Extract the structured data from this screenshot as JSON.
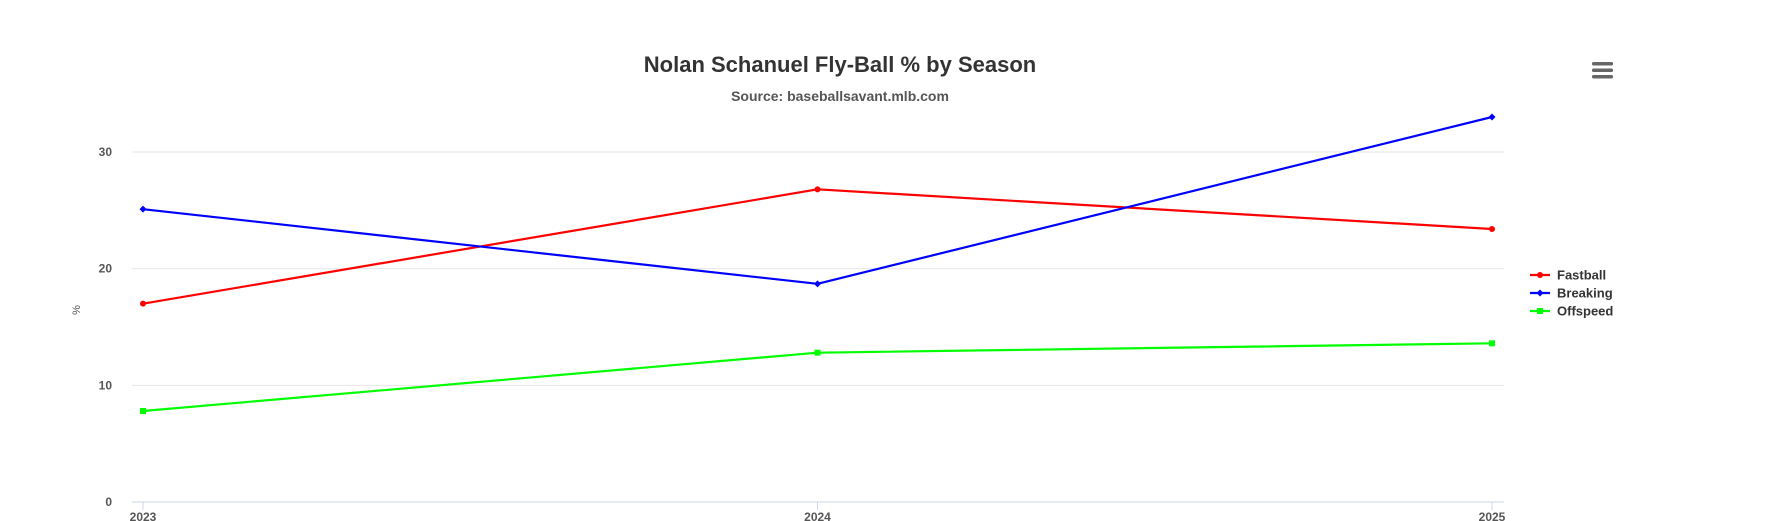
{
  "chart_data": {
    "type": "line",
    "title": "Nolan Schanuel Fly-Ball % by Season",
    "subtitle": "Source: baseballsavant.mlb.com",
    "xlabel": "",
    "ylabel": "%",
    "categories": [
      "2023",
      "2024",
      "2025"
    ],
    "ylim": [
      0,
      33
    ],
    "yticks": [
      0,
      10,
      20,
      30
    ],
    "grid": true,
    "legend_position": "right",
    "series": [
      {
        "name": "Fastball",
        "color": "#ff0000",
        "values": [
          17.0,
          26.8,
          23.4
        ]
      },
      {
        "name": "Breaking",
        "color": "#0000ff",
        "values": [
          25.1,
          18.7,
          33.0
        ]
      },
      {
        "name": "Offspeed",
        "color": "#00ff00",
        "values": [
          7.8,
          12.8,
          13.6
        ]
      }
    ]
  },
  "menu": {
    "icon": "hamburger-menu-icon"
  }
}
